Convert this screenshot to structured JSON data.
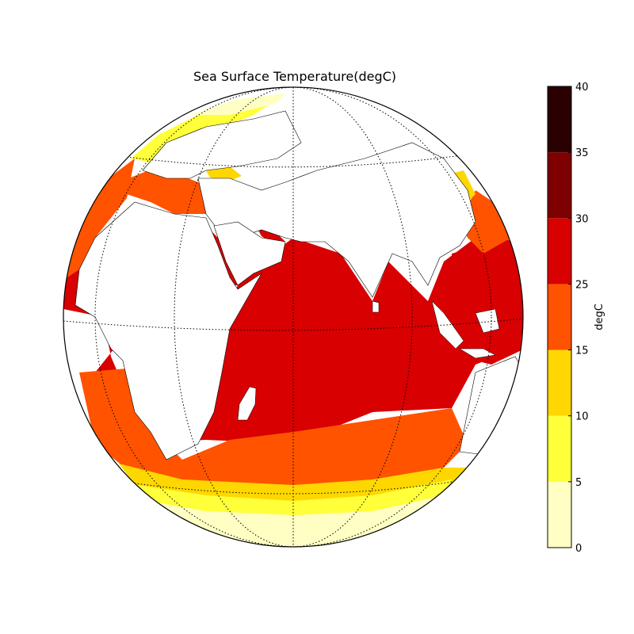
{
  "map": {
    "title": "Sea Surface Temperature(degC)",
    "projection": "orthographic",
    "grid": "dotted meridians and parallels",
    "background": "#ffffff",
    "land_color": "#ffffff",
    "coastline_color": "#000000"
  },
  "colorbar": {
    "label": "degC",
    "ticks": [
      "0",
      "5",
      "10",
      "15",
      "25",
      "30",
      "35",
      "40"
    ],
    "bands": [
      {
        "from": 0,
        "to": 5,
        "color": "#ffffc4"
      },
      {
        "from": 5,
        "to": 10,
        "color": "#ffff3a"
      },
      {
        "from": 10,
        "to": 15,
        "color": "#ffd700"
      },
      {
        "from": 15,
        "to": 25,
        "color": "#ff5300"
      },
      {
        "from": 25,
        "to": 30,
        "color": "#d80000"
      },
      {
        "from": 30,
        "to": 35,
        "color": "#7e0000"
      },
      {
        "from": 35,
        "to": 40,
        "color": "#2a0000"
      }
    ]
  }
}
